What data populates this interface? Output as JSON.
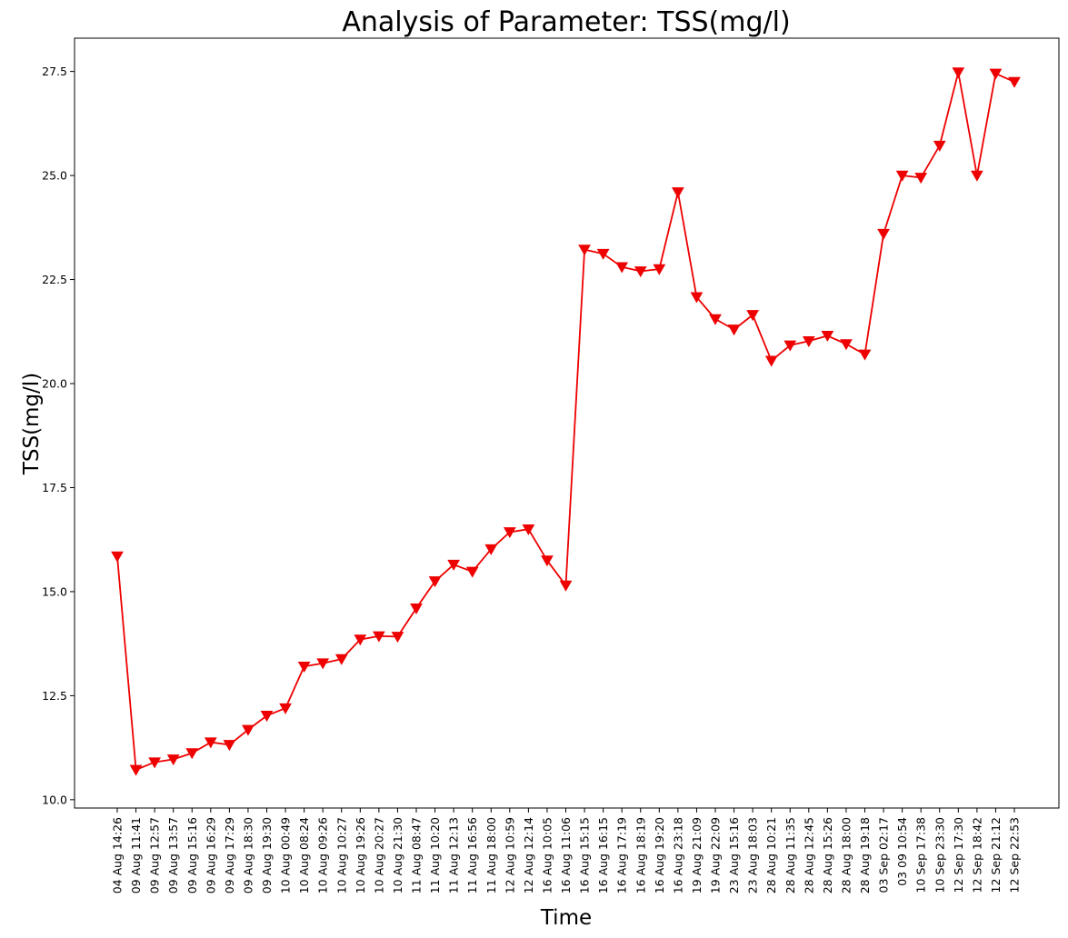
{
  "chart_data": {
    "type": "line",
    "title": "Analysis of Parameter: TSS(mg/l)",
    "xlabel": "Time",
    "ylabel": "TSS(mg/l)",
    "ylim": [
      9.8,
      28.3
    ],
    "yticks": [
      "10.0",
      "12.5",
      "15.0",
      "17.5",
      "20.0",
      "22.5",
      "25.0",
      "27.5"
    ],
    "grid": false,
    "legend": "none",
    "marker": "triangle-down",
    "color": "#ee0000",
    "categories": [
      "04 Aug 14:26",
      "09 Aug 11:41",
      "09 Aug 12:57",
      "09 Aug 13:57",
      "09 Aug 15:16",
      "09 Aug 16:29",
      "09 Aug 17:29",
      "09 Aug 18:30",
      "09 Aug 19:30",
      "10 Aug 00:49",
      "10 Aug 08:24",
      "10 Aug 09:26",
      "10 Aug 10:27",
      "10 Aug 19:26",
      "10 Aug 20:27",
      "10 Aug 21:30",
      "11 Aug 08:47",
      "11 Aug 10:20",
      "11 Aug 12:13",
      "11 Aug 16:56",
      "11 Aug 18:00",
      "12 Aug 10:59",
      "12 Aug 12:14",
      "16 Aug 10:05",
      "16 Aug 11:06",
      "16 Aug 15:15",
      "16 Aug 16:15",
      "16 Aug 17:19",
      "16 Aug 18:19",
      "16 Aug 19:20",
      "16 Aug 23:18",
      "19 Aug 21:09",
      "19 Aug 22:09",
      "23 Aug 15:16",
      "23 Aug 18:03",
      "28 Aug 10:21",
      "28 Aug 11:35",
      "28 Aug 12:45",
      "28 Aug 15:26",
      "28 Aug 18:00",
      "28 Aug 19:18",
      "03 Sep 02:17",
      "03 09 10:54",
      "10 Sep 17:38",
      "10 Sep 23:30",
      "12 Sep 17:30",
      "12 Sep 18:42",
      "12 Sep 21:12",
      "12 Sep 22:53"
    ],
    "tick_labels": [
      "04 Aug 14:26",
      "09 Aug 11:41",
      "09 Aug 12:57",
      "09 Aug 13:57",
      "09 Aug 15:16",
      "09 Aug 16:29",
      "09 Aug 17:29",
      "09 Aug 18:30",
      "09 Aug 19:30",
      "10 Aug 00:49",
      "10 Aug 08:24",
      "10 Aug 09:26",
      "10 Aug 10:27",
      "10 Aug 19:26",
      "10 Aug 20:27",
      "10 Aug 21:30",
      "11 Aug 08:47",
      "11 Aug 10:20",
      "11 Aug 12:13",
      "11 Aug 16:56",
      "11 Aug 18:00",
      "12 Aug 10:59",
      "12 Aug 12:14",
      "16 Aug 10:05",
      "16 Aug 11:06",
      "16 Aug 15:15",
      "16 Aug 16:15",
      "16 Aug 17:19",
      "16 Aug 18:19",
      "16 Aug 19:20",
      "16 Aug 23:18",
      "19 Aug 21:09",
      "19 Aug 22:09",
      "23 Aug 15:16",
      "23 Aug 18:03",
      "28 Aug 10:21",
      "28 Aug 11:35",
      "28 Aug 12:45",
      "28 Aug 15:26",
      "28 Aug 18:00",
      "28 Aug 19:18",
      "03 Sep 02:17",
      "03 09 10:54",
      "10 Sep 17:38",
      "10 Sep 23:30",
      "12 Sep 17:30",
      "12 Sep 18:42",
      "12 Sep 21:12",
      "12 Sep 22:53"
    ],
    "values": [
      15.85,
      10.72,
      10.9,
      10.97,
      11.12,
      11.38,
      11.32,
      11.68,
      12.02,
      12.2,
      13.2,
      13.28,
      13.38,
      13.85,
      13.93,
      13.92,
      14.6,
      15.25,
      15.65,
      15.48,
      16.02,
      16.43,
      16.5,
      15.75,
      15.15,
      23.22,
      23.12,
      22.8,
      22.7,
      22.75,
      24.6,
      22.08,
      21.55,
      21.3,
      21.65,
      20.55,
      20.92,
      21.02,
      21.15,
      20.95,
      20.7,
      23.6,
      25.0,
      24.95,
      25.72,
      27.48,
      25.0,
      27.45,
      27.25
    ]
  }
}
